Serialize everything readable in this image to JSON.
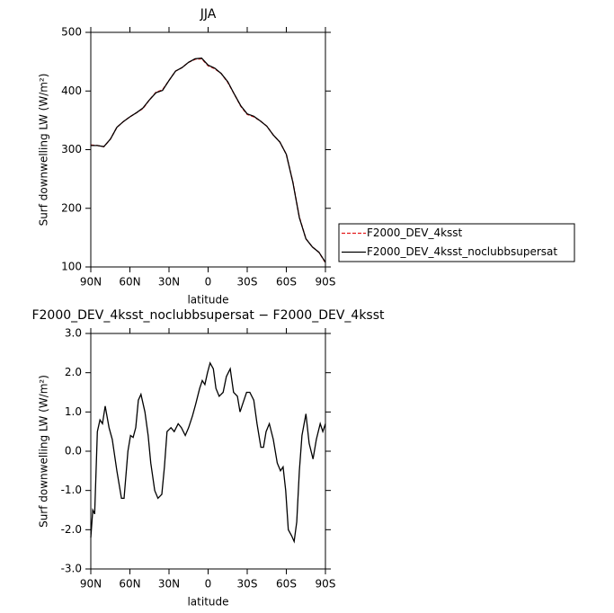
{
  "chart_data": [
    {
      "type": "line",
      "title": "JJA",
      "x_label": "latitude",
      "y_label": "Surf downwelling LW (W/m²)",
      "x": [
        90,
        85,
        80,
        75,
        70,
        65,
        60,
        55,
        50,
        45,
        40,
        35,
        30,
        25,
        20,
        15,
        10,
        5,
        0,
        -5,
        -10,
        -15,
        -20,
        -25,
        -30,
        -35,
        -40,
        -45,
        -50,
        -55,
        -60,
        -65,
        -70,
        -75,
        -80,
        -85,
        -90
      ],
      "series": [
        {
          "name": "F2000_DEV_4ksst",
          "color": "#e41a1c",
          "dash": true,
          "values": [
            308,
            307,
            305,
            318,
            338,
            348,
            356,
            363,
            370,
            385,
            398,
            402,
            418,
            434,
            440,
            449,
            454,
            455,
            443,
            438,
            430,
            415,
            395,
            374,
            360,
            356,
            349,
            340,
            325,
            313,
            292,
            245,
            185,
            148,
            134,
            125,
            107
          ]
        },
        {
          "name": "F2000_DEV_4ksst_noclubbsupersat",
          "color": "#000000",
          "dash": false,
          "values": [
            307,
            307,
            305,
            318,
            338,
            348,
            356,
            363,
            371,
            385,
            397,
            401,
            418,
            434,
            440,
            449,
            455,
            456,
            444,
            439,
            430,
            416,
            395,
            375,
            361,
            357,
            349,
            340,
            325,
            313,
            292,
            244,
            184,
            148,
            134,
            125,
            108
          ]
        }
      ],
      "xlim": [
        90,
        -90
      ],
      "xticks": [
        {
          "value": 90,
          "label": "90N"
        },
        {
          "value": 60,
          "label": "60N"
        },
        {
          "value": 30,
          "label": "30N"
        },
        0,
        {
          "value": -30,
          "label": "30S"
        },
        {
          "value": -60,
          "label": "60S"
        },
        {
          "value": -90,
          "label": "90S"
        }
      ],
      "ylim": [
        100,
        500
      ],
      "yticks": [
        100,
        200,
        300,
        400,
        500
      ],
      "legend": "right"
    },
    {
      "type": "line",
      "title": "F2000_DEV_4ksst_noclubbsupersat − F2000_DEV_4ksst",
      "x_label": "latitude",
      "y_label": "Surf downwelling LW (W/m²)",
      "x": [
        90,
        88.5,
        87,
        85,
        83,
        81,
        79,
        76,
        73.5,
        70,
        66.5,
        64.5,
        61.5,
        59.5,
        57.5,
        55.5,
        53.5,
        51.5,
        48.5,
        46,
        44,
        41,
        38.5,
        35.5,
        33.5,
        31.5,
        28.5,
        26,
        23,
        20.5,
        17.5,
        15,
        12,
        9.5,
        6.5,
        4.5,
        2.5,
        0.5,
        -1.5,
        -4,
        -6,
        -8.5,
        -11.5,
        -14,
        -17,
        -19.5,
        -22.5,
        -24.5,
        -26.5,
        -29.5,
        -32,
        -35,
        -37.5,
        -40.5,
        -42.5,
        -44.5,
        -47,
        -50,
        -53,
        -55.5,
        -57.5,
        -59.5,
        -61.5,
        -64,
        -66,
        -68,
        -70,
        -72,
        -75,
        -77.5,
        -80.5,
        -83,
        -86,
        -88,
        -90
      ],
      "series": [
        {
          "name": "difference",
          "color": "#000000",
          "dash": false,
          "values": [
            -2.2,
            -1.5,
            -1.6,
            0.5,
            0.8,
            0.7,
            1.15,
            0.6,
            0.3,
            -0.5,
            -1.2,
            -1.2,
            0.0,
            0.4,
            0.35,
            0.6,
            1.3,
            1.45,
            1.0,
            0.4,
            -0.3,
            -1.0,
            -1.2,
            -1.1,
            -0.4,
            0.5,
            0.6,
            0.5,
            0.7,
            0.6,
            0.4,
            0.6,
            0.9,
            1.2,
            1.6,
            1.8,
            1.7,
            2.0,
            2.25,
            2.1,
            1.6,
            1.4,
            1.5,
            1.9,
            2.1,
            1.5,
            1.4,
            1.0,
            1.2,
            1.5,
            1.5,
            1.3,
            0.7,
            0.1,
            0.1,
            0.5,
            0.7,
            0.3,
            -0.3,
            -0.5,
            -0.4,
            -1.0,
            -2.0,
            -2.15,
            -2.3,
            -1.8,
            -0.5,
            0.4,
            0.95,
            0.2,
            -0.2,
            0.3,
            0.7,
            0.5,
            0.7
          ]
        }
      ],
      "xlim": [
        90,
        -90
      ],
      "xticks": [
        {
          "value": 90,
          "label": "90N"
        },
        {
          "value": 60,
          "label": "60N"
        },
        {
          "value": 30,
          "label": "30N"
        },
        0,
        {
          "value": -30,
          "label": "30S"
        },
        {
          "value": -60,
          "label": "60S"
        },
        {
          "value": -90,
          "label": "90S"
        }
      ],
      "ylim": [
        -3,
        3
      ],
      "yticks": [
        {
          "value": -3,
          "label": "-3.0"
        },
        {
          "value": -2,
          "label": "-2.0"
        },
        {
          "value": -1,
          "label": "-1.0"
        },
        {
          "value": 0,
          "label": "0.0"
        },
        {
          "value": 1,
          "label": "1.0"
        },
        {
          "value": 2,
          "label": "2.0"
        },
        {
          "value": 3,
          "label": "3.0"
        }
      ]
    }
  ]
}
